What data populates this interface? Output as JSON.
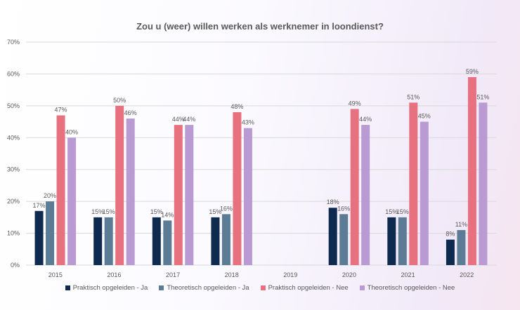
{
  "chart_data": {
    "type": "bar",
    "title": "Zou u (weer) willen werken als werknemer in loondienst?",
    "categories": [
      "2015",
      "2016",
      "2017",
      "2018",
      "2019",
      "2020",
      "2021",
      "2022"
    ],
    "ylim": [
      0,
      70
    ],
    "yticks": [
      "0%",
      "10%",
      "20%",
      "30%",
      "40%",
      "50%",
      "60%",
      "70%"
    ],
    "grid": true,
    "legend_position": "bottom",
    "series": [
      {
        "name": "Praktisch opgeleiden - Ja",
        "color": "#0f2a4f",
        "values": [
          17,
          15,
          15,
          15,
          null,
          18,
          15,
          8
        ],
        "labels": [
          "17%",
          "15%",
          "15%",
          "15%",
          "",
          "18%",
          "15%",
          "8%"
        ]
      },
      {
        "name": "Theoretisch opgeleiden - Ja",
        "color": "#5c7b94",
        "values": [
          20,
          15,
          14,
          16,
          null,
          16,
          15,
          11
        ],
        "labels": [
          "20%",
          "15%",
          "14%",
          "16%",
          "",
          "16%",
          "15%",
          "11%"
        ]
      },
      {
        "name": "Praktisch opgeleiden - Nee",
        "color": "#e8717f",
        "values": [
          47,
          50,
          44,
          48,
          null,
          49,
          51,
          59
        ],
        "labels": [
          "47%",
          "50%",
          "44%",
          "48%",
          "",
          "49%",
          "51%",
          "59%"
        ]
      },
      {
        "name": "Theoretisch opgeleiden - Nee",
        "color": "#b99ad3",
        "values": [
          40,
          46,
          44,
          43,
          null,
          44,
          45,
          51
        ],
        "labels": [
          "40%",
          "46%",
          "44%",
          "43%",
          "",
          "44%",
          "45%",
          "51%"
        ]
      }
    ]
  }
}
